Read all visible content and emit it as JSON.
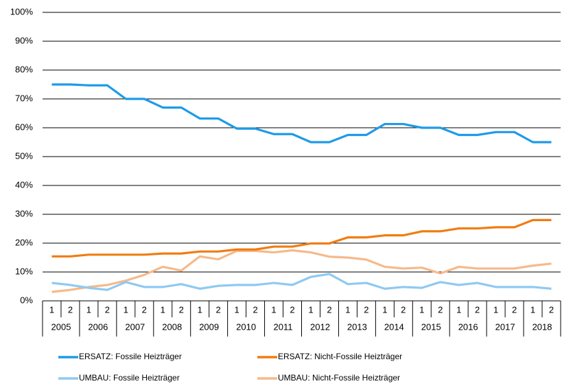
{
  "chart_data": {
    "type": "line",
    "categories": [
      "1",
      "2",
      "1",
      "2",
      "1",
      "2",
      "1",
      "2",
      "1",
      "2",
      "1",
      "2",
      "1",
      "2",
      "1",
      "2",
      "1",
      "2",
      "1",
      "2",
      "1",
      "2",
      "1",
      "2",
      "1",
      "2",
      "1",
      "2"
    ],
    "category_groups": [
      "2005",
      "2006",
      "2007",
      "2008",
      "2009",
      "2010",
      "2011",
      "2012",
      "2013",
      "2014",
      "2015",
      "2016",
      "2017",
      "2018"
    ],
    "series": [
      {
        "name": "ERSATZ: Fossile Heizträger",
        "color": "#1e9be8",
        "values": [
          75,
          75,
          74.7,
          74.7,
          70,
          70,
          67,
          67,
          63.2,
          63.2,
          59.7,
          59.7,
          57.8,
          57.8,
          55,
          55,
          57.5,
          57.5,
          61.3,
          61.3,
          60,
          60,
          57.5,
          57.5,
          58.5,
          58.5,
          55,
          55
        ]
      },
      {
        "name": "ERSATZ: Nicht-Fossile Heizträger",
        "color": "#f07c12",
        "values": [
          15.4,
          15.4,
          16,
          16,
          16,
          16,
          16.4,
          16.4,
          17.1,
          17.1,
          17.8,
          17.8,
          18.8,
          18.8,
          19.9,
          19.9,
          22,
          22,
          22.7,
          22.7,
          24.1,
          24.1,
          25.1,
          25.1,
          25.5,
          25.5,
          28,
          28
        ]
      },
      {
        "name": "UMBAU: Fossile Heizträger",
        "color": "#8ec9f2",
        "values": [
          6.2,
          5.5,
          4.5,
          3.8,
          6.5,
          4.8,
          4.8,
          5.8,
          4.2,
          5.2,
          5.5,
          5.5,
          6.2,
          5.5,
          8.3,
          9.3,
          5.8,
          6.2,
          4.2,
          4.8,
          4.5,
          6.5,
          5.5,
          6.2,
          4.8,
          4.8,
          4.8,
          4.2
        ]
      },
      {
        "name": "UMBAU: Nicht-Fossile Heizträger",
        "color": "#f6b98a",
        "values": [
          3.1,
          3.8,
          4.8,
          5.5,
          7,
          9,
          11.8,
          10.5,
          15.4,
          14.4,
          17.3,
          17.3,
          16.8,
          17.5,
          16.8,
          15.3,
          15,
          14.3,
          11.8,
          11.2,
          11.5,
          9.5,
          11.8,
          11.2,
          11.2,
          11.2,
          12.2,
          12.9
        ]
      }
    ],
    "ylim": [
      0,
      100
    ],
    "yticks": [
      {
        "value": 0,
        "label": "0%"
      },
      {
        "value": 10,
        "label": "10%"
      },
      {
        "value": 20,
        "label": "20%"
      },
      {
        "value": 30,
        "label": "30%"
      },
      {
        "value": 40,
        "label": "40%"
      },
      {
        "value": 50,
        "label": "50%"
      },
      {
        "value": 60,
        "label": "60%"
      },
      {
        "value": 70,
        "label": "70%"
      },
      {
        "value": 80,
        "label": "80%"
      },
      {
        "value": 90,
        "label": "90%"
      },
      {
        "value": 100,
        "label": "100%"
      }
    ],
    "grid": true
  }
}
